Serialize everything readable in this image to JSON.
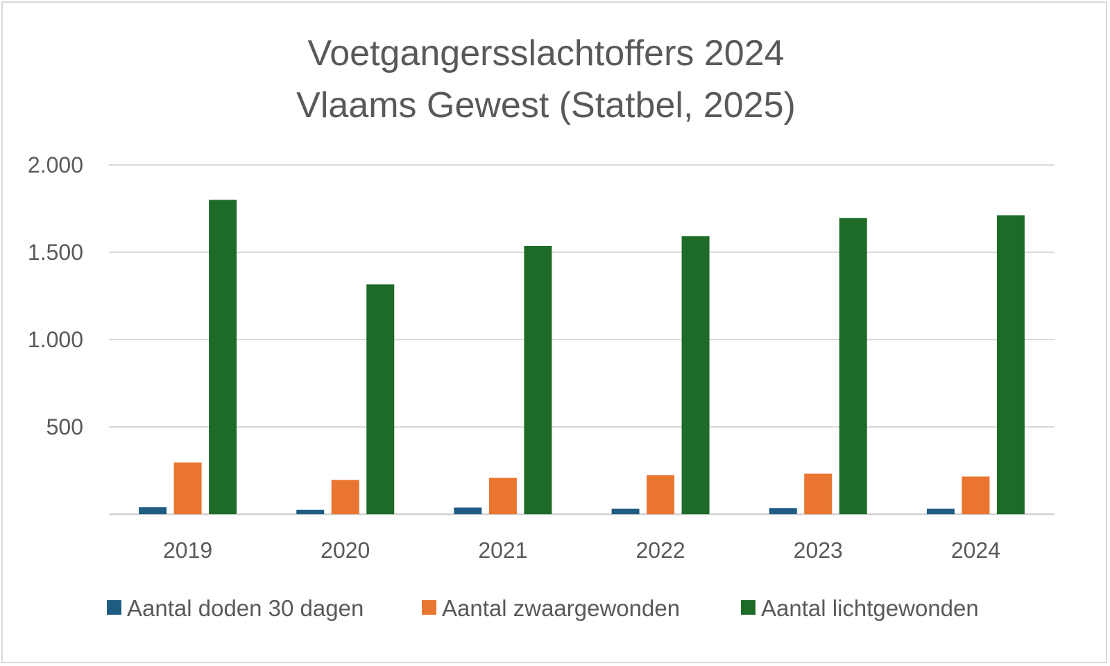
{
  "chart_data": {
    "type": "bar",
    "title": "Voetgangersslachtoffers 2024",
    "subtitle": "Vlaams Gewest (Statbel, 2025)",
    "categories": [
      "2019",
      "2020",
      "2021",
      "2022",
      "2023",
      "2024"
    ],
    "series": [
      {
        "name": "Aantal doden 30 dagen",
        "color": "#1f5c84",
        "values": [
          40,
          25,
          38,
          32,
          35,
          32
        ]
      },
      {
        "name": "Aantal zwaargewonden",
        "color": "#e97530",
        "values": [
          296,
          196,
          208,
          224,
          232,
          216
        ]
      },
      {
        "name": "Aantal lichtgewonden",
        "color": "#1d6b27",
        "values": [
          1800,
          1316,
          1536,
          1592,
          1696,
          1712
        ]
      }
    ],
    "yticks": [
      "",
      "500",
      "1.000",
      "1.500",
      "2.000"
    ],
    "ylim": [
      0,
      2000
    ],
    "grid": true,
    "legend_position": "bottom"
  }
}
